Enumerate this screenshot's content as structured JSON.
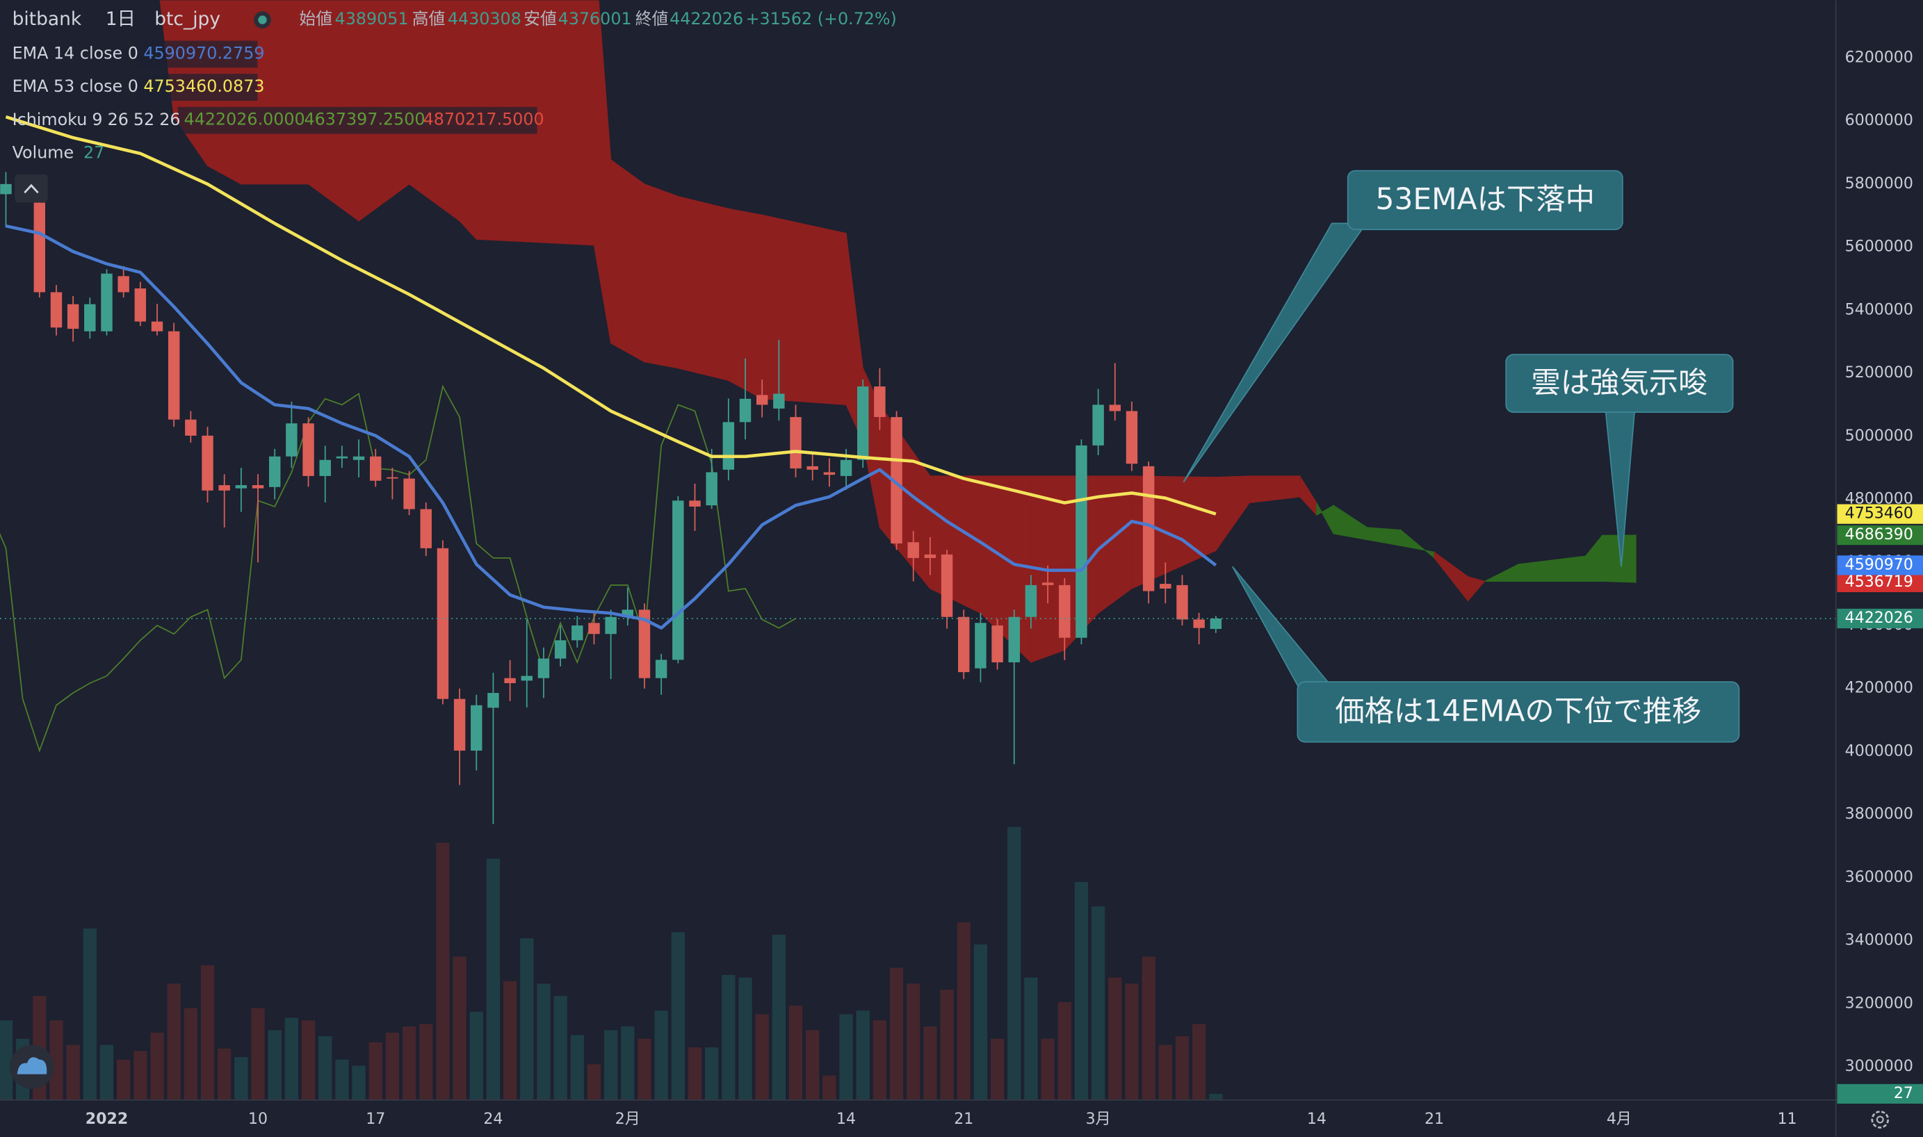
{
  "header": {
    "exchange": "bitbank",
    "interval": "1日",
    "symbol": "btc_jpy",
    "ohlc_labels": [
      "始値",
      "高値",
      "安値",
      "終値"
    ],
    "change": "+31562 (+0.72%)"
  },
  "chart_data": {
    "type": "candlestick",
    "x": [
      -6,
      -5,
      -4,
      -3,
      -2,
      -1,
      0,
      1,
      2,
      3,
      4,
      5,
      6,
      7,
      8,
      9,
      10,
      11,
      12,
      13,
      14,
      15,
      16,
      17,
      18,
      19,
      20,
      21,
      22,
      23,
      24,
      25,
      26,
      27,
      28,
      29,
      30,
      31,
      32,
      33,
      34,
      35,
      36,
      37,
      38,
      39,
      40,
      41,
      42,
      43,
      44,
      45,
      46,
      47,
      48,
      49,
      50,
      51,
      52,
      53,
      54,
      55,
      56,
      57,
      58,
      59,
      60,
      61,
      62,
      63,
      64,
      65,
      66
    ],
    "open": [
      5768000,
      5790000,
      5741000,
      5457000,
      5419000,
      5333000,
      5333000,
      5508000,
      5469000,
      5364000,
      5333000,
      5053000,
      5002000,
      4845000,
      4835000,
      4845000,
      4839000,
      4936000,
      5041000,
      4874000,
      4930000,
      4925000,
      4936000,
      4870000,
      4866000,
      4769000,
      4645000,
      4167000,
      4003000,
      4139000,
      4233000,
      4225000,
      4233000,
      4295000,
      4353000,
      4408000,
      4373000,
      4427000,
      4450000,
      4233000,
      4291000,
      4796000,
      4781000,
      4894000,
      5045000,
      5131000,
      5088000,
      5061000,
      4905000,
      4886000,
      4874000,
      4925000,
      5158000,
      5061000,
      4664000,
      4625000,
      4625000,
      4427000,
      4264000,
      4400000,
      4283000,
      4427000,
      4536000,
      4528000,
      4361000,
      4971000,
      5100000,
      5080000,
      4905000,
      4532000,
      4528000,
      4419000,
      4389051
    ],
    "high": [
      5838000,
      5830000,
      5780000,
      5480000,
      5445000,
      5440000,
      5530000,
      5540000,
      5490000,
      5420000,
      5360000,
      5080000,
      5030000,
      4880000,
      4900000,
      4880000,
      4960000,
      5110000,
      5060000,
      4970000,
      4970000,
      4990000,
      4960000,
      4900000,
      4890000,
      4790000,
      4670000,
      4200000,
      4180000,
      4250000,
      4290000,
      4420000,
      4330000,
      4400000,
      4430000,
      4440000,
      4450000,
      4520000,
      4470000,
      4310000,
      4810000,
      4850000,
      4960000,
      5120000,
      5247000,
      5180000,
      5306000,
      5100000,
      4950000,
      4930000,
      4960000,
      5180000,
      5216000,
      5080000,
      4700000,
      4680000,
      4640000,
      4450000,
      4440000,
      4420000,
      4450000,
      4560000,
      4590000,
      4550000,
      4990000,
      5150000,
      5232000,
      5110000,
      4920000,
      4600000,
      4560000,
      4440000,
      4430308
    ],
    "low": [
      5663000,
      5760000,
      5440000,
      5320000,
      5300000,
      5310000,
      5320000,
      5440000,
      5350000,
      5320000,
      5030000,
      4980000,
      4790000,
      4711000,
      4760000,
      4600000,
      4800000,
      4900000,
      4840000,
      4790000,
      4900000,
      4870000,
      4840000,
      4800000,
      4750000,
      4620000,
      4150000,
      3894000,
      3940000,
      3770000,
      4160000,
      4140000,
      4170000,
      4270000,
      4330000,
      4340000,
      4230000,
      4400000,
      4200000,
      4180000,
      4280000,
      4700000,
      4770000,
      4860000,
      4990000,
      5060000,
      5050000,
      4870000,
      4860000,
      4840000,
      4830000,
      4900000,
      5020000,
      4640000,
      4540000,
      4560000,
      4390000,
      4230000,
      4220000,
      4260000,
      3960000,
      4390000,
      4470000,
      4290000,
      4340000,
      4940000,
      5050000,
      4890000,
      4470000,
      4470000,
      4400000,
      4340000,
      4376001
    ],
    "close": [
      5800000,
      5805000,
      5457000,
      5345000,
      5341000,
      5419000,
      5516000,
      5457000,
      5364000,
      5333000,
      5053000,
      5002000,
      4828000,
      4828000,
      4845000,
      4835000,
      4936000,
      5041000,
      4874000,
      4925000,
      4936000,
      4936000,
      4859000,
      4866000,
      4769000,
      4645000,
      4167000,
      4003000,
      4147000,
      4186000,
      4217000,
      4240000,
      4295000,
      4353000,
      4400000,
      4373000,
      4427000,
      4450000,
      4233000,
      4291000,
      4796000,
      4777000,
      4886000,
      5045000,
      5119000,
      5100000,
      5135000,
      4898000,
      4894000,
      4878000,
      4925000,
      5158000,
      5061000,
      4660000,
      4614000,
      4614000,
      4427000,
      4252000,
      4408000,
      4283000,
      4427000,
      4528000,
      4528000,
      4361000,
      4971000,
      5100000,
      5080000,
      4913000,
      4509000,
      4517000,
      4419000,
      4392000,
      4422026
    ],
    "up_color": "#3f9f8f",
    "down_color": "#dc5f58",
    "xlim": [
      -6.35,
      102.9
    ],
    "xticks": [
      {
        "value": 0,
        "label": "2022"
      },
      {
        "value": 9,
        "label": "10"
      },
      {
        "value": 16,
        "label": "17"
      },
      {
        "value": 23,
        "label": "24"
      },
      {
        "value": 31,
        "label": "2月"
      },
      {
        "value": 44,
        "label": "14"
      },
      {
        "value": 51,
        "label": "21"
      },
      {
        "value": 59,
        "label": "3月"
      },
      {
        "value": 72,
        "label": "14"
      },
      {
        "value": 79,
        "label": "21"
      },
      {
        "value": 90,
        "label": "4月"
      },
      {
        "value": 100,
        "label": "11"
      }
    ],
    "ylim": [
      2895000,
      6383000
    ],
    "yticks": [
      3000000,
      3200000,
      3400000,
      3600000,
      3800000,
      4000000,
      4200000,
      4400000,
      4600000,
      4800000,
      5000000,
      5200000,
      5400000,
      5600000,
      5800000,
      6000000,
      6200000
    ],
    "ema": [
      {
        "name": "EMA 14 close 0",
        "color": "#4a7bd0",
        "last_label": "4590970",
        "x": [
          -6,
          -4,
          -2,
          0,
          2,
          4,
          6,
          8,
          10,
          12,
          14,
          16,
          18,
          20,
          22,
          24,
          26,
          28,
          30,
          32,
          33,
          35,
          37,
          39,
          41,
          43,
          45,
          46,
          48,
          50,
          52,
          54,
          56,
          58,
          59,
          61,
          62,
          64,
          66
        ],
        "values": [
          5667000,
          5644000,
          5586000,
          5547000,
          5520000,
          5411000,
          5294000,
          5170000,
          5100000,
          5088000,
          5041000,
          5002000,
          4936000,
          4789000,
          4594000,
          4497000,
          4458000,
          4447000,
          4439000,
          4419000,
          4392000,
          4485000,
          4594000,
          4719000,
          4781000,
          4808000,
          4866000,
          4894000,
          4808000,
          4730000,
          4664000,
          4594000,
          4575000,
          4575000,
          4641000,
          4730000,
          4719000,
          4672000,
          4590970.2759
        ]
      },
      {
        "name": "EMA 53 close 0",
        "color": "#f3e35a",
        "last_label": "4753460",
        "x": [
          -6,
          -2,
          2,
          6,
          10,
          14,
          18,
          22,
          26,
          30,
          34,
          36,
          38,
          41,
          45,
          48,
          51,
          54,
          57,
          59,
          61,
          63,
          66
        ],
        "values": [
          6013000,
          5947000,
          5897000,
          5800000,
          5675000,
          5558000,
          5450000,
          5333000,
          5216000,
          5080000,
          4983000,
          4936000,
          4936000,
          4952000,
          4933000,
          4921000,
          4866000,
          4828000,
          4789000,
          4808000,
          4820000,
          4804000,
          4753460.0873
        ]
      }
    ],
    "ichimoku": {
      "name": "Ichimoku",
      "params": [
        9,
        26,
        52,
        26
      ],
      "legend_values": [
        "4422026.0000",
        "4637397.2500",
        "4870217.5000"
      ],
      "lagging_color": "#4d7f2a",
      "bull_color": "#2d6a1f",
      "bear_color": "#8e1f1f",
      "x": [
        3,
        4,
        6,
        8,
        12,
        15,
        18,
        21,
        22,
        29,
        30,
        32,
        34,
        37,
        39,
        44,
        45,
        46,
        49,
        52,
        55,
        57,
        59,
        61,
        66,
        68,
        71,
        72,
        73,
        75,
        77,
        79,
        81,
        82,
        84,
        88,
        89,
        91
      ],
      "span_a": [
        6460000,
        6013000,
        5858000,
        5800000,
        5800000,
        5683000,
        5800000,
        5683000,
        5625000,
        5606000,
        5295000,
        5236000,
        5216000,
        5177000,
        5119000,
        5100000,
        4983000,
        4711000,
        4517000,
        4439000,
        4283000,
        4322000,
        4439000,
        4517000,
        4637397.25,
        4789000,
        4808000,
        4750000,
        4781000,
        4711000,
        4703000,
        4614000,
        4478000,
        4540000,
        4594000,
        4620000,
        4686000,
        4686390
      ],
      "span_b": [
        6772000,
        6772000,
        6772000,
        6772000,
        6772000,
        6772000,
        6772000,
        6772000,
        6772000,
        6577000,
        5877000,
        5800000,
        5761000,
        5722000,
        5702000,
        5644000,
        5216000,
        5100000,
        4874000,
        4874000,
        4874000,
        4874000,
        4874000,
        4874000,
        4870217.5,
        4874000,
        4874000,
        4789000,
        4691000,
        4672000,
        4653000,
        4633000,
        4555000,
        4540000,
        4540000,
        4540000,
        4540000,
        4536719
      ]
    },
    "volume": {
      "name": "Volume",
      "ylim": [
        0,
        1600
      ],
      "up_color": "#1f3d45",
      "down_color": "#45262d",
      "values": [
        351,
        270,
        459,
        351,
        243,
        756,
        243,
        178,
        216,
        297,
        513,
        405,
        594,
        227,
        189,
        405,
        308,
        362,
        351,
        281,
        178,
        151,
        254,
        297,
        324,
        335,
        1134,
        632,
        389,
        1064,
        524,
        713,
        513,
        459,
        286,
        157,
        308,
        324,
        270,
        394,
        740,
        232,
        232,
        551,
        540,
        378,
        729,
        416,
        308,
        108,
        378,
        394,
        351,
        583,
        513,
        324,
        486,
        783,
        686,
        270,
        1204,
        540,
        270,
        432,
        961,
        853,
        540,
        513,
        632,
        243,
        281,
        335,
        27
      ]
    },
    "annotations": [
      "53EMAは下落中",
      "雲は強気示唆",
      "価格は14EMAの下位で推移"
    ]
  }
}
